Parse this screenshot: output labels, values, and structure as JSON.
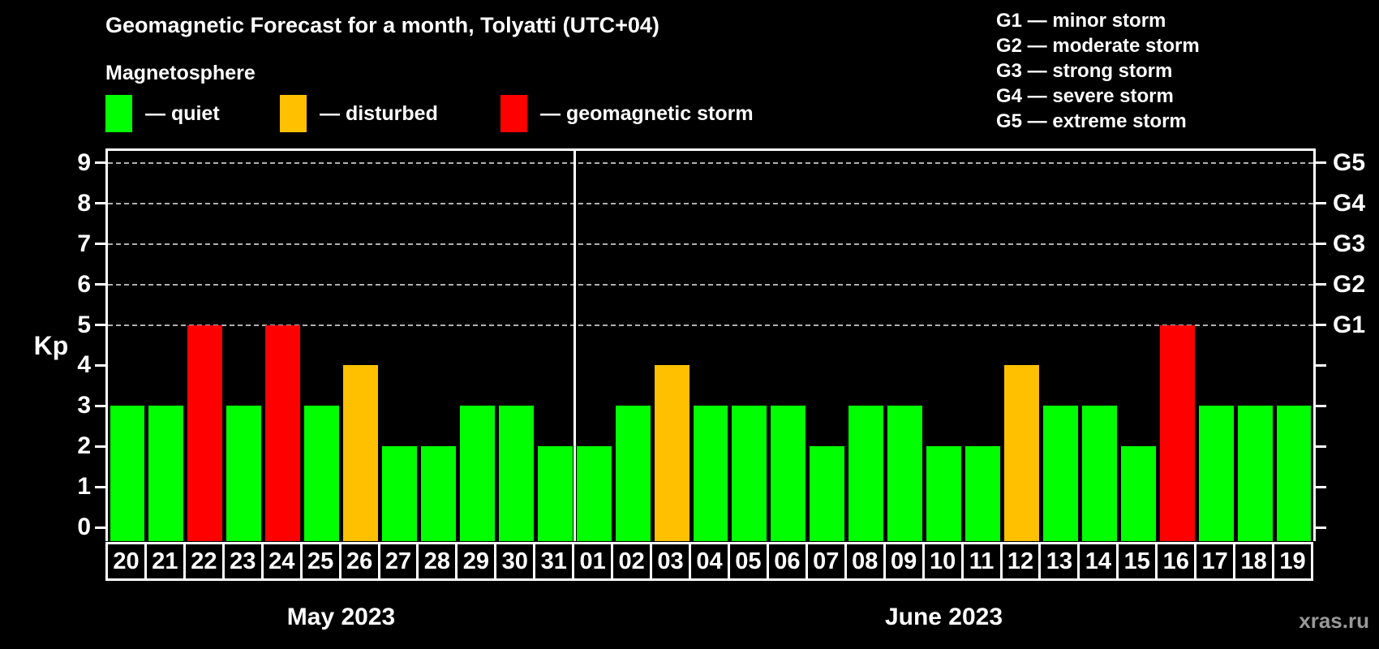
{
  "header": {
    "title": "Geomagnetic Forecast for a month, Tolyatti (UTC+04)",
    "subtitle": "Magnetosphere"
  },
  "legend": {
    "items": [
      {
        "label": "— quiet",
        "status": "quiet",
        "color": "#00ff00"
      },
      {
        "label": "— disturbed",
        "status": "disturbed",
        "color": "#ffc000"
      },
      {
        "label": "— geomagnetic storm",
        "status": "storm",
        "color": "#ff0000"
      }
    ]
  },
  "storm_scale_legend": {
    "items": [
      "G1 — minor storm",
      "G2 — moderate storm",
      "G3 — strong storm",
      "G4 — severe storm",
      "G5 — extreme storm"
    ]
  },
  "watermark": "xras.ru",
  "chart_data": {
    "type": "bar",
    "ylabel": "Kp",
    "ylim": [
      0,
      9.5
    ],
    "yticks": [
      0,
      1,
      2,
      3,
      4,
      5,
      6,
      7,
      8,
      9
    ],
    "gridline_levels": [
      5,
      6,
      7,
      8,
      9
    ],
    "right_axis": [
      {
        "kp": 5,
        "label": "G1"
      },
      {
        "kp": 6,
        "label": "G2"
      },
      {
        "kp": 7,
        "label": "G3"
      },
      {
        "kp": 8,
        "label": "G4"
      },
      {
        "kp": 9,
        "label": "G5"
      }
    ],
    "status_colors": {
      "quiet": "#00ff00",
      "disturbed": "#ffc000",
      "storm": "#ff0000"
    },
    "months": [
      {
        "label": "May 2023",
        "days": [
          {
            "day": "20",
            "kp": 3,
            "status": "quiet"
          },
          {
            "day": "21",
            "kp": 3,
            "status": "quiet"
          },
          {
            "day": "22",
            "kp": 5,
            "status": "storm"
          },
          {
            "day": "23",
            "kp": 3,
            "status": "quiet"
          },
          {
            "day": "24",
            "kp": 5,
            "status": "storm"
          },
          {
            "day": "25",
            "kp": 3,
            "status": "quiet"
          },
          {
            "day": "26",
            "kp": 4,
            "status": "disturbed"
          },
          {
            "day": "27",
            "kp": 2,
            "status": "quiet"
          },
          {
            "day": "28",
            "kp": 2,
            "status": "quiet"
          },
          {
            "day": "29",
            "kp": 3,
            "status": "quiet"
          },
          {
            "day": "30",
            "kp": 3,
            "status": "quiet"
          },
          {
            "day": "31",
            "kp": 2,
            "status": "quiet"
          }
        ]
      },
      {
        "label": "June 2023",
        "days": [
          {
            "day": "01",
            "kp": 2,
            "status": "quiet"
          },
          {
            "day": "02",
            "kp": 3,
            "status": "quiet"
          },
          {
            "day": "03",
            "kp": 4,
            "status": "disturbed"
          },
          {
            "day": "04",
            "kp": 3,
            "status": "quiet"
          },
          {
            "day": "05",
            "kp": 3,
            "status": "quiet"
          },
          {
            "day": "06",
            "kp": 3,
            "status": "quiet"
          },
          {
            "day": "07",
            "kp": 2,
            "status": "quiet"
          },
          {
            "day": "08",
            "kp": 3,
            "status": "quiet"
          },
          {
            "day": "09",
            "kp": 3,
            "status": "quiet"
          },
          {
            "day": "10",
            "kp": 2,
            "status": "quiet"
          },
          {
            "day": "11",
            "kp": 2,
            "status": "quiet"
          },
          {
            "day": "12",
            "kp": 4,
            "status": "disturbed"
          },
          {
            "day": "13",
            "kp": 3,
            "status": "quiet"
          },
          {
            "day": "14",
            "kp": 3,
            "status": "quiet"
          },
          {
            "day": "15",
            "kp": 2,
            "status": "quiet"
          },
          {
            "day": "16",
            "kp": 5,
            "status": "storm"
          },
          {
            "day": "17",
            "kp": 3,
            "status": "quiet"
          },
          {
            "day": "18",
            "kp": 3,
            "status": "quiet"
          },
          {
            "day": "19",
            "kp": 3,
            "status": "quiet"
          }
        ]
      }
    ]
  }
}
